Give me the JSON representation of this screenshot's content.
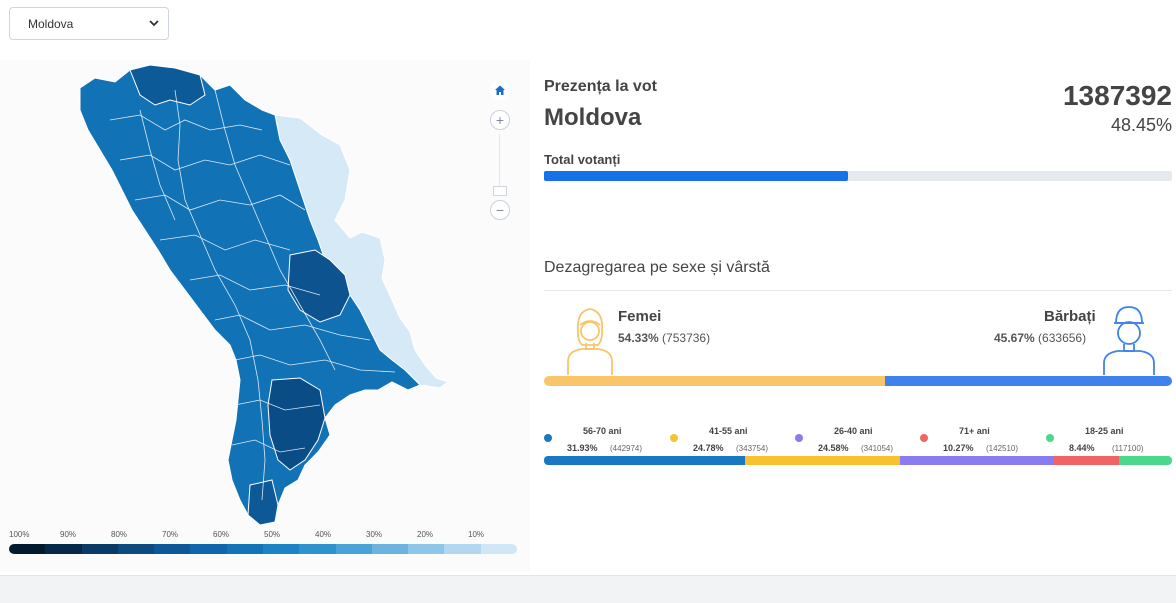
{
  "selector": {
    "value": "Moldova",
    "chevron_icon": "chevron-down-icon"
  },
  "map": {
    "zoom_home_icon": "home-icon",
    "zoom_in_label": "+",
    "zoom_out_label": "−",
    "legend": [
      "100%",
      "90%",
      "80%",
      "70%",
      "60%",
      "50%",
      "40%",
      "30%",
      "20%",
      "10%"
    ],
    "legend_colors": [
      "#031a2e",
      "#06294a",
      "#0a3a66",
      "#0c4a80",
      "#0d5896",
      "#0f67ab",
      "#1474b8",
      "#1c83c4",
      "#2e93cd",
      "#4aa3d6",
      "#6cb4df",
      "#8ec6e8",
      "#b1d8f0",
      "#d1e7f6"
    ]
  },
  "turnout": {
    "title": "Prezența la vot",
    "region": "Moldova",
    "total": "1387392",
    "percent": "48.45%",
    "voters_label": "Total votanți",
    "progress": 48.45
  },
  "breakdown": {
    "title": "Dezagregarea pe sexe și vârstă",
    "female": {
      "label": "Femei",
      "percent": "54.33%",
      "count": "(753736)",
      "share": 54.33,
      "color": "#f9c56b"
    },
    "male": {
      "label": "Bărbați",
      "percent": "45.67%",
      "count": "(633656)",
      "share": 45.67,
      "color": "#3f82ec"
    },
    "ages": [
      {
        "label": "56-70 ani",
        "percent": "31.93%",
        "count": "(442974)",
        "share": 31.93,
        "color": "#1a78c2"
      },
      {
        "label": "41-55 ani",
        "percent": "24.78%",
        "count": "(343754)",
        "share": 24.78,
        "color": "#f6c232"
      },
      {
        "label": "26-40 ani",
        "percent": "24.58%",
        "count": "(341054)",
        "share": 24.58,
        "color": "#8a7cf0"
      },
      {
        "label": "71+ ani",
        "percent": "10.27%",
        "count": "(142510)",
        "share": 10.27,
        "color": "#ef6464"
      },
      {
        "label": "18-25 ani",
        "percent": "8.44%",
        "count": "(117100)",
        "share": 8.44,
        "color": "#4bd88e"
      }
    ]
  }
}
